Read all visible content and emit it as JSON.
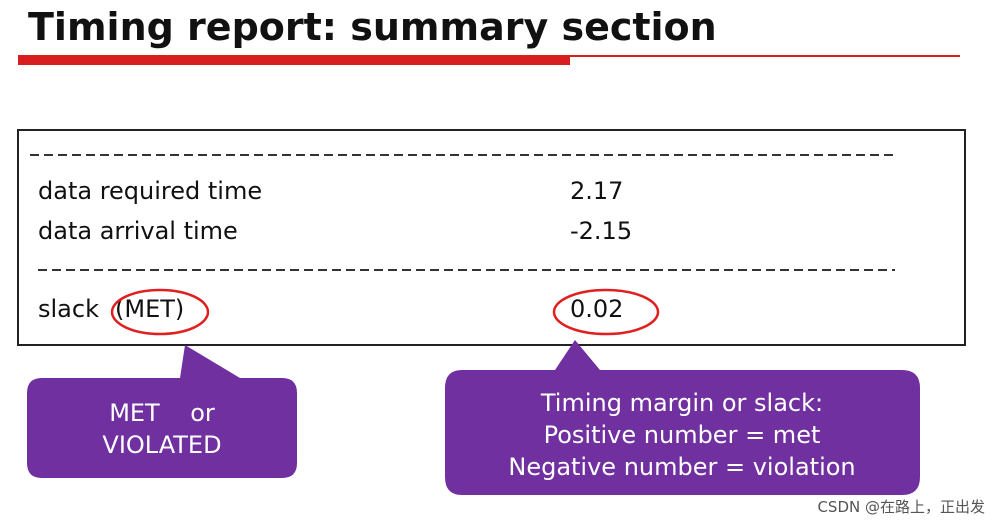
{
  "header": {
    "title": "Timing report: summary section"
  },
  "report": {
    "rows": [
      {
        "label": "data required time",
        "value": "2.17"
      },
      {
        "label": "data arrival time",
        "value": "-2.15"
      }
    ],
    "slack": {
      "label": "slack",
      "status": "(MET)",
      "value": "0.02"
    }
  },
  "callouts": [
    {
      "lines": [
        "MET    or",
        "VIOLATED"
      ]
    },
    {
      "lines": [
        "Timing margin or slack:",
        "Positive number = met",
        "Negative number = violation"
      ]
    }
  ],
  "watermark": "CSDN @在路上，正出发"
}
